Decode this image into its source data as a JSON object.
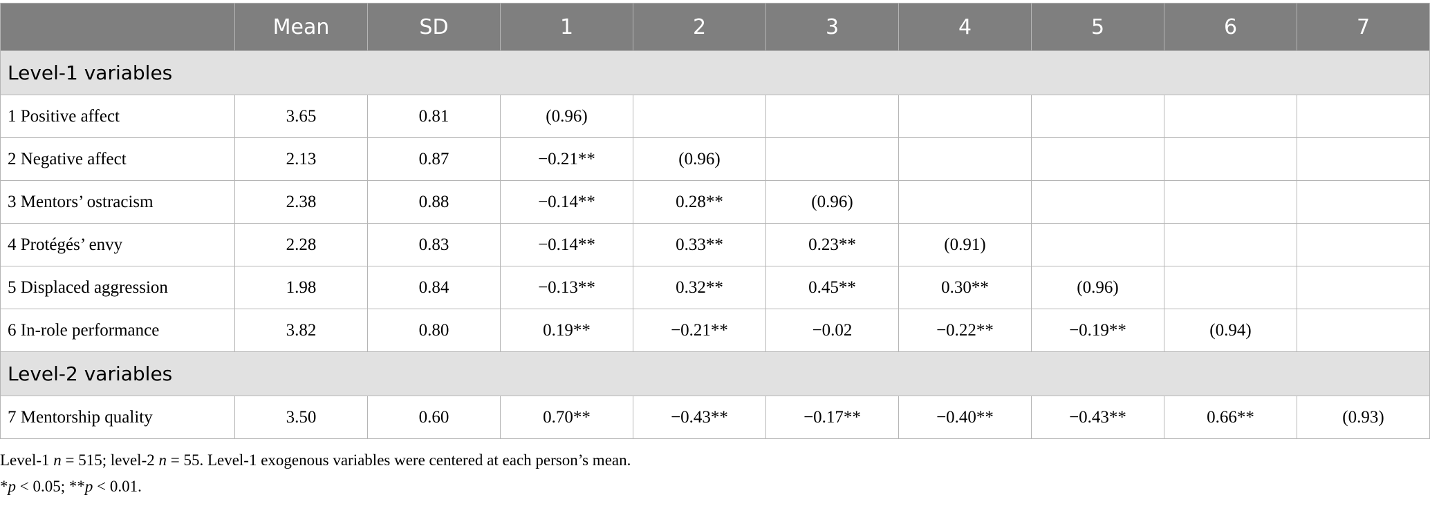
{
  "table": {
    "columns": [
      "Mean",
      "SD",
      "1",
      "2",
      "3",
      "4",
      "5",
      "6",
      "7"
    ],
    "sections": [
      {
        "title": "Level-1 variables",
        "rows": [
          {
            "label": "1 Positive affect",
            "cells": [
              "3.65",
              "0.81",
              "(0.96)"
            ]
          },
          {
            "label": "2 Negative affect",
            "cells": [
              "2.13",
              "0.87",
              "−0.21**",
              "(0.96)"
            ]
          },
          {
            "label": "3 Mentors’ ostracism",
            "cells": [
              "2.38",
              "0.88",
              "−0.14**",
              "0.28**",
              "(0.96)"
            ]
          },
          {
            "label": "4 Protégés’ envy",
            "cells": [
              "2.28",
              "0.83",
              "−0.14**",
              "0.33**",
              "0.23**",
              "(0.91)"
            ]
          },
          {
            "label": "5 Displaced aggression",
            "cells": [
              "1.98",
              "0.84",
              "−0.13**",
              "0.32**",
              "0.45**",
              "0.30**",
              "(0.96)"
            ]
          },
          {
            "label": "6 In-role performance",
            "cells": [
              "3.82",
              "0.80",
              "0.19**",
              "−0.21**",
              "−0.02",
              "−0.22**",
              "−0.19**",
              "(0.94)"
            ]
          }
        ]
      },
      {
        "title": "Level-2 variables",
        "rows": [
          {
            "label": "7 Mentorship quality",
            "cells": [
              "3.50",
              "0.60",
              "0.70**",
              "−0.43**",
              "−0.17**",
              "−0.40**",
              "−0.43**",
              "0.66**",
              "(0.93)"
            ]
          }
        ]
      }
    ],
    "notes": [
      [
        {
          "text": "Level-1 "
        },
        {
          "text": "n",
          "italic": true
        },
        {
          "text": " = 515; level-2 "
        },
        {
          "text": "n",
          "italic": true
        },
        {
          "text": " = 55. Level-1 exogenous variables were centered at each person’s mean."
        }
      ],
      [
        {
          "text": "*"
        },
        {
          "text": "p",
          "italic": true
        },
        {
          "text": " < 0.05; **"
        },
        {
          "text": "p",
          "italic": true
        },
        {
          "text": " < 0.01."
        }
      ]
    ]
  }
}
